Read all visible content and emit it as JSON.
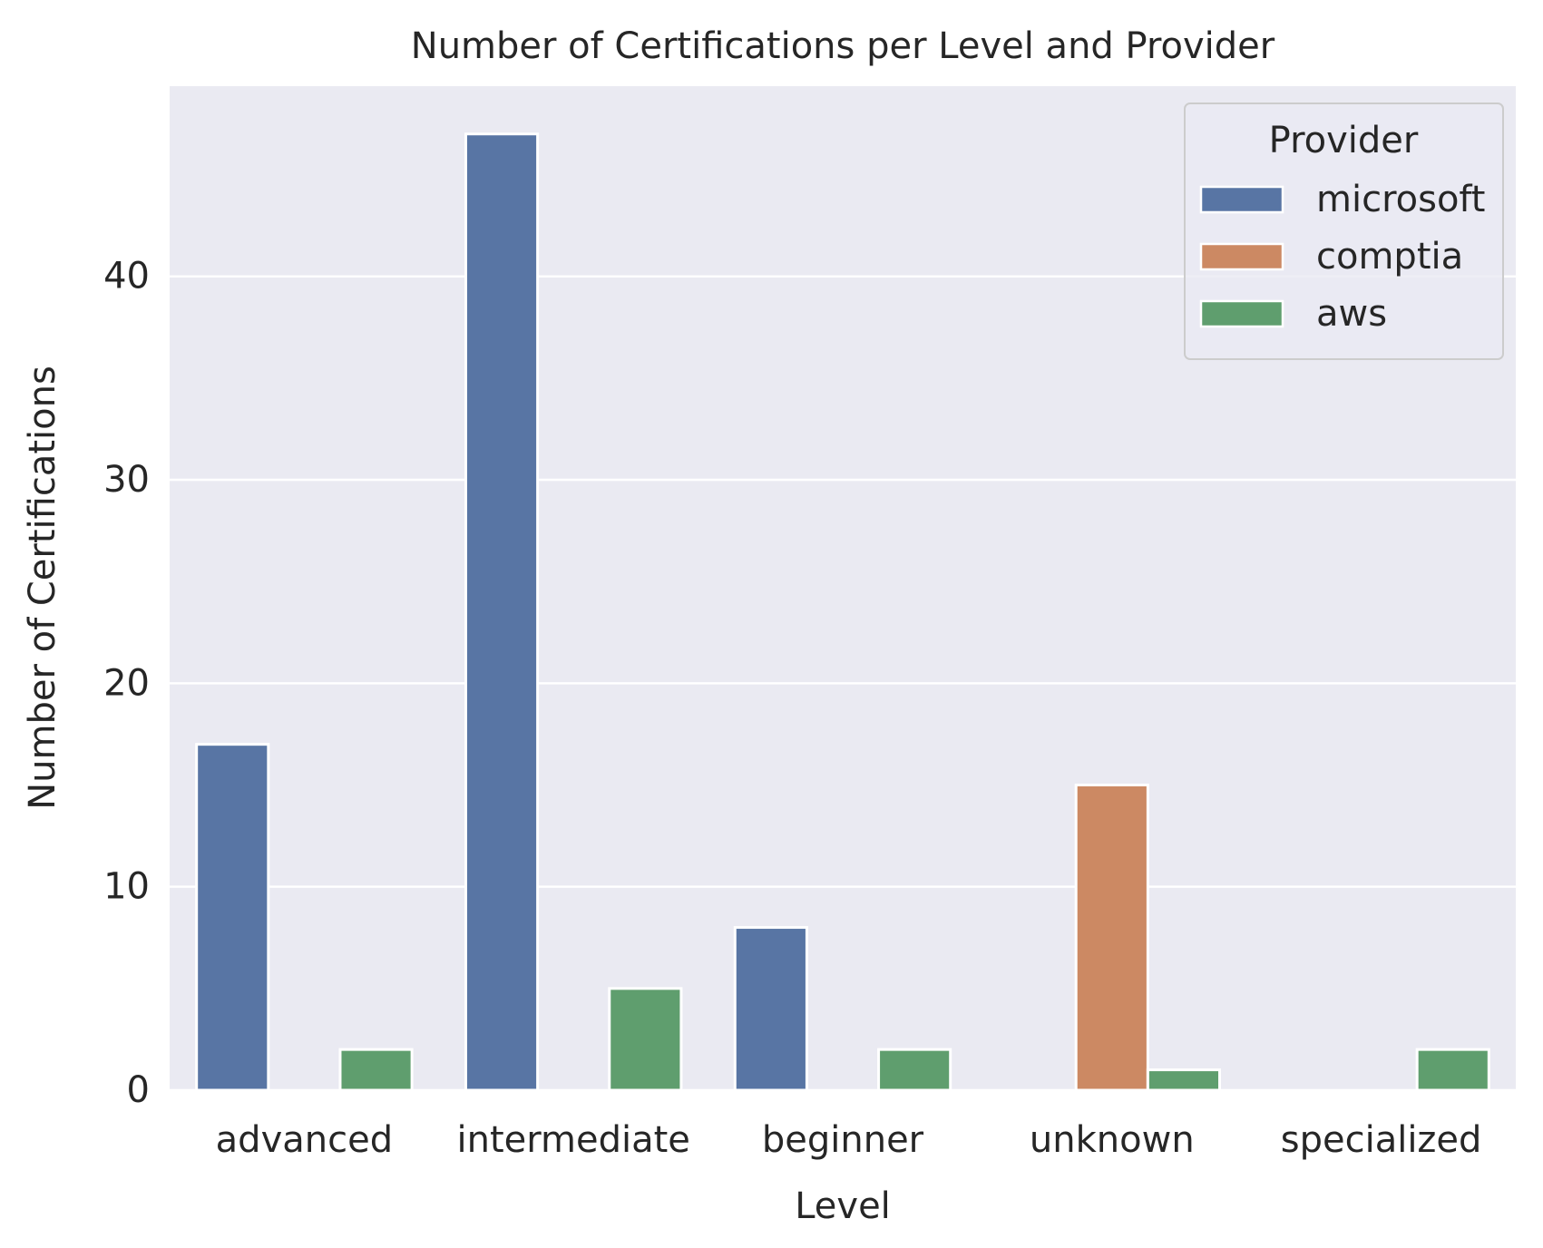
{
  "chart_data": {
    "type": "bar",
    "title": "Number of Certifications per Level and Provider",
    "xlabel": "Level",
    "ylabel": "Number of Certifications",
    "categories": [
      "advanced",
      "intermediate",
      "beginner",
      "unknown",
      "specialized"
    ],
    "series": [
      {
        "name": "microsoft",
        "color": "#5875a4",
        "values": [
          17,
          47,
          8,
          0,
          0
        ]
      },
      {
        "name": "comptia",
        "color": "#cc8963",
        "values": [
          0,
          0,
          0,
          15,
          0
        ]
      },
      {
        "name": "aws",
        "color": "#5f9e6e",
        "values": [
          2,
          5,
          2,
          1,
          2
        ]
      }
    ],
    "ylim": [
      0,
      49.35
    ],
    "yticks": [
      0,
      10,
      20,
      30,
      40
    ],
    "grid": true,
    "legend": {
      "title": "Provider",
      "placement": "top-right"
    },
    "colors": {
      "plot_background": "#eaeaf2",
      "grid": "#ffffff",
      "text": "#262626"
    }
  }
}
